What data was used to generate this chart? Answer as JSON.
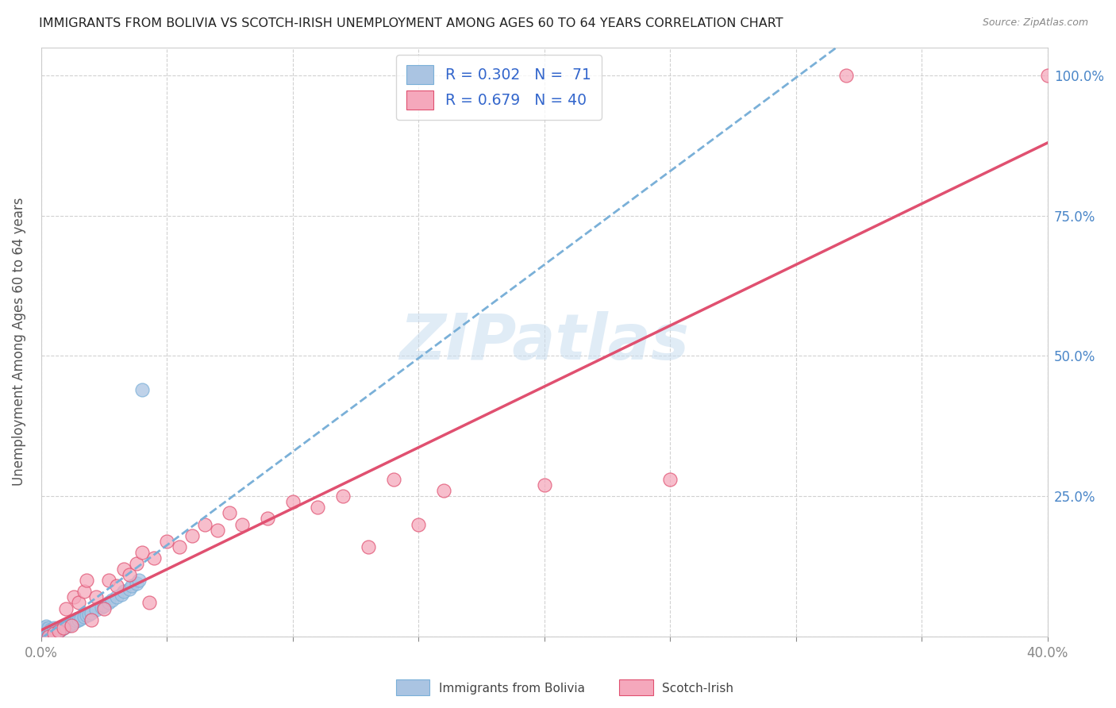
{
  "title": "IMMIGRANTS FROM BOLIVIA VS SCOTCH-IRISH UNEMPLOYMENT AMONG AGES 60 TO 64 YEARS CORRELATION CHART",
  "source": "Source: ZipAtlas.com",
  "ylabel": "Unemployment Among Ages 60 to 64 years",
  "legend_r1": "R = 0.302",
  "legend_n1": "N =  71",
  "legend_r2": "R = 0.679",
  "legend_n2": "N = 40",
  "bolivia_color": "#aac4e2",
  "scotch_color": "#f5a8bc",
  "trendline_bolivia_color": "#7ab0d8",
  "trendline_scotch_color": "#e05070",
  "watermark": "ZIPatlas",
  "title_color": "#222222",
  "axis_label_color": "#4a86c8",
  "legend_text_color": "#3366cc",
  "grid_color": "#cccccc",
  "bolivia_x": [
    0.0,
    0.0,
    0.0,
    0.0,
    0.0,
    0.0,
    0.0,
    0.0,
    0.0,
    0.0,
    0.0,
    0.0,
    0.0,
    0.0,
    0.001,
    0.001,
    0.001,
    0.001,
    0.001,
    0.001,
    0.001,
    0.001,
    0.001,
    0.001,
    0.001,
    0.001,
    0.002,
    0.002,
    0.002,
    0.002,
    0.002,
    0.002,
    0.003,
    0.003,
    0.003,
    0.003,
    0.004,
    0.004,
    0.004,
    0.005,
    0.005,
    0.005,
    0.006,
    0.006,
    0.007,
    0.008,
    0.009,
    0.01,
    0.011,
    0.012,
    0.013,
    0.014,
    0.015,
    0.016,
    0.017,
    0.018,
    0.019,
    0.02,
    0.022,
    0.024,
    0.025,
    0.027,
    0.028,
    0.03,
    0.032,
    0.033,
    0.035,
    0.036,
    0.038,
    0.039,
    0.04
  ],
  "bolivia_y": [
    0.0,
    0.0,
    0.0,
    0.001,
    0.001,
    0.002,
    0.002,
    0.003,
    0.003,
    0.004,
    0.005,
    0.006,
    0.007,
    0.008,
    0.0,
    0.001,
    0.002,
    0.003,
    0.004,
    0.005,
    0.006,
    0.007,
    0.008,
    0.01,
    0.012,
    0.015,
    0.002,
    0.004,
    0.006,
    0.008,
    0.012,
    0.018,
    0.004,
    0.006,
    0.01,
    0.015,
    0.005,
    0.008,
    0.012,
    0.006,
    0.01,
    0.015,
    0.008,
    0.012,
    0.01,
    0.012,
    0.015,
    0.018,
    0.02,
    0.022,
    0.025,
    0.028,
    0.03,
    0.033,
    0.035,
    0.038,
    0.04,
    0.042,
    0.048,
    0.052,
    0.055,
    0.06,
    0.065,
    0.07,
    0.075,
    0.08,
    0.085,
    0.09,
    0.095,
    0.1,
    0.44
  ],
  "scotch_x": [
    0.003,
    0.005,
    0.007,
    0.009,
    0.01,
    0.012,
    0.013,
    0.015,
    0.017,
    0.018,
    0.02,
    0.022,
    0.025,
    0.027,
    0.03,
    0.033,
    0.035,
    0.038,
    0.04,
    0.043,
    0.045,
    0.05,
    0.055,
    0.06,
    0.065,
    0.07,
    0.075,
    0.08,
    0.09,
    0.1,
    0.11,
    0.12,
    0.13,
    0.14,
    0.15,
    0.16,
    0.2,
    0.25,
    0.32,
    0.4
  ],
  "scotch_y": [
    0.0,
    0.005,
    0.01,
    0.015,
    0.05,
    0.02,
    0.07,
    0.06,
    0.08,
    0.1,
    0.03,
    0.07,
    0.05,
    0.1,
    0.09,
    0.12,
    0.11,
    0.13,
    0.15,
    0.06,
    0.14,
    0.17,
    0.16,
    0.18,
    0.2,
    0.19,
    0.22,
    0.2,
    0.21,
    0.24,
    0.23,
    0.25,
    0.16,
    0.28,
    0.2,
    0.26,
    0.27,
    0.28,
    1.0,
    1.0
  ],
  "xlim": [
    0.0,
    0.4
  ],
  "ylim": [
    0.0,
    1.05
  ],
  "xtick_positions": [
    0.0,
    0.05,
    0.1,
    0.15,
    0.2,
    0.25,
    0.3,
    0.35,
    0.4
  ],
  "xtick_labels": [
    "0.0%",
    "",
    "",
    "",
    "",
    "",
    "",
    "",
    "40.0%"
  ],
  "ytick_positions": [
    0.0,
    0.25,
    0.5,
    0.75,
    1.0
  ],
  "ytick_labels": [
    "",
    "25.0%",
    "50.0%",
    "75.0%",
    "100.0%"
  ]
}
